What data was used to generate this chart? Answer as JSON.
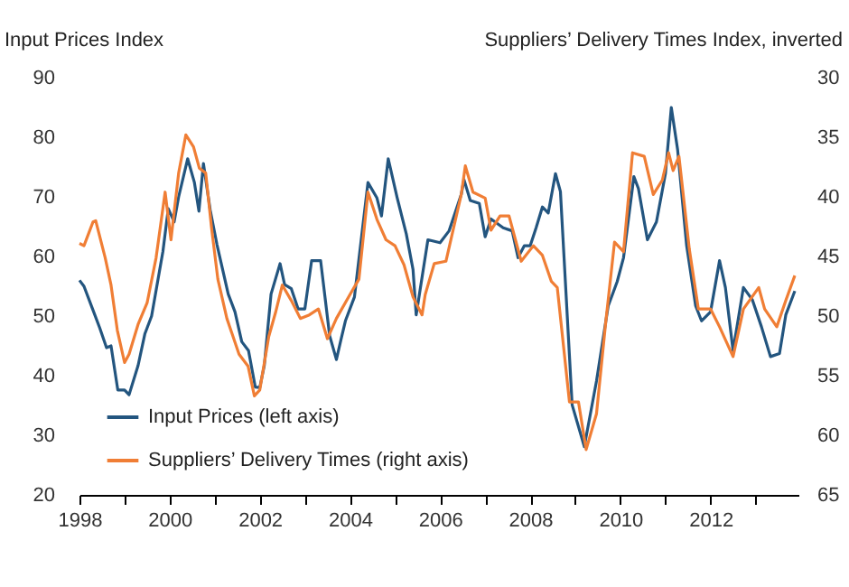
{
  "chart_data": {
    "type": "line",
    "ylabel": "Input Prices Index",
    "y2label": "Suppliers’ Delivery Times Index, inverted",
    "xlim": [
      1998,
      2013.95
    ],
    "xticks": [
      1998,
      {
        "value": 1999,
        "label": null
      },
      2000,
      {
        "value": 2001,
        "label": null
      },
      2002,
      {
        "value": 2003,
        "label": null
      },
      2004,
      {
        "value": 2005,
        "label": null
      },
      2006,
      {
        "value": 2007,
        "label": null
      },
      2008,
      {
        "value": 2009,
        "label": null
      },
      2010,
      {
        "value": 2011,
        "label": null
      },
      2012,
      {
        "value": 2013,
        "label": null
      }
    ],
    "ylim": [
      20,
      90
    ],
    "yticks": [
      20,
      30,
      40,
      50,
      60,
      70,
      80,
      90
    ],
    "y2lim": [
      65,
      30
    ],
    "y2ticks": [
      30,
      35,
      40,
      45,
      50,
      55,
      60,
      65
    ],
    "grid": false,
    "legend": "bottom left",
    "marker": "none",
    "line_style": "solid",
    "series": [
      {
        "name": "Input Prices (left axis)",
        "color": "#23557f",
        "x": [
          1998.0,
          1998.1,
          1998.3,
          1998.45,
          1998.6,
          1998.7,
          1998.85,
          1999.0,
          1999.1,
          1999.3,
          1999.45,
          1999.6,
          1999.85,
          1999.97,
          2000.1,
          2000.2,
          2000.4,
          2000.55,
          2000.65,
          2000.75,
          2000.9,
          2001.05,
          2001.3,
          2001.45,
          2001.6,
          2001.75,
          2001.9,
          2002.0,
          2002.1,
          2002.25,
          2002.45,
          2002.55,
          2002.7,
          2002.85,
          2003.0,
          2003.15,
          2003.35,
          2003.55,
          2003.7,
          2003.8,
          2003.9,
          2004.1,
          2004.4,
          2004.6,
          2004.7,
          2004.85,
          2005.05,
          2005.25,
          2005.4,
          2005.47,
          2005.73,
          2006.0,
          2006.2,
          2006.47,
          2006.53,
          2006.67,
          2006.87,
          2007.0,
          2007.13,
          2007.4,
          2007.6,
          2007.73,
          2007.87,
          2008.0,
          2008.13,
          2008.27,
          2008.4,
          2008.56,
          2008.67,
          2008.93,
          2009.2,
          2009.47,
          2009.73,
          2009.93,
          2010.07,
          2010.3,
          2010.4,
          2010.6,
          2010.8,
          2011.0,
          2011.13,
          2011.27,
          2011.47,
          2011.67,
          2011.8,
          2012.0,
          2012.2,
          2012.33,
          2012.5,
          2012.73,
          2012.93,
          2013.13,
          2013.33,
          2013.53,
          2013.67,
          2013.87
        ],
        "values": [
          56,
          55,
          51,
          48,
          44.7,
          45,
          37.6,
          37.6,
          36.8,
          41.7,
          47,
          50,
          60.8,
          68,
          65.8,
          70,
          76.4,
          72.4,
          67.6,
          75.6,
          67.8,
          62,
          53.7,
          50.7,
          45.7,
          44.2,
          38.1,
          38,
          41.7,
          53.7,
          58.8,
          55.3,
          54.6,
          51.2,
          51.2,
          59.3,
          59.3,
          46.7,
          42.7,
          46,
          49.2,
          53.2,
          72.4,
          69.8,
          66.8,
          76.4,
          69.8,
          63.8,
          57.8,
          50.2,
          62.8,
          62.3,
          64.3,
          70.4,
          72.9,
          69.4,
          68.9,
          63.3,
          66.3,
          64.8,
          64.3,
          59.8,
          61.8,
          61.8,
          64.8,
          68.3,
          67.3,
          73.9,
          70.9,
          35.1,
          28.1,
          39.1,
          51.7,
          55.8,
          59.8,
          73.4,
          71.4,
          62.8,
          65.8,
          73.9,
          85,
          77.9,
          61.8,
          51.7,
          49.2,
          50.7,
          59.3,
          54.8,
          44.2,
          54.8,
          52.7,
          48.2,
          43.2,
          43.7,
          50.2,
          54.2
        ]
      },
      {
        "name": "Suppliers’ Delivery Times (right axis)",
        "color": "#f07e35",
        "axis": "y2",
        "x": [
          1998.0,
          1998.1,
          1998.3,
          1998.36,
          1998.57,
          1998.7,
          1998.84,
          1999.0,
          1999.1,
          1999.3,
          1999.5,
          1999.7,
          1999.9,
          2000.03,
          2000.2,
          2000.36,
          2000.53,
          2000.66,
          2000.8,
          2000.93,
          2001.07,
          2001.27,
          2001.54,
          2001.74,
          2001.88,
          2002.0,
          2002.2,
          2002.35,
          2002.5,
          2002.7,
          2002.9,
          2003.1,
          2003.3,
          2003.5,
          2003.7,
          2004.0,
          2004.2,
          2004.4,
          2004.6,
          2004.8,
          2005.0,
          2005.2,
          2005.4,
          2005.6,
          2005.67,
          2005.87,
          2006.13,
          2006.47,
          2006.56,
          2006.73,
          2007.0,
          2007.13,
          2007.33,
          2007.53,
          2007.8,
          2008.07,
          2008.27,
          2008.47,
          2008.6,
          2008.87,
          2009.07,
          2009.24,
          2009.47,
          2009.67,
          2009.87,
          2010.07,
          2010.27,
          2010.53,
          2010.73,
          2010.93,
          2011.07,
          2011.17,
          2011.3,
          2011.53,
          2011.73,
          2012.0,
          2012.2,
          2012.5,
          2012.73,
          2013.07,
          2013.2,
          2013.47,
          2013.67,
          2013.87
        ],
        "values": [
          43.9,
          44.1,
          42.1,
          42,
          45.1,
          47.4,
          51.2,
          53.9,
          53.2,
          50.7,
          48.9,
          45.1,
          39.6,
          43.6,
          38,
          34.8,
          35.8,
          37.6,
          38,
          42.6,
          46.9,
          50.2,
          53.2,
          54.2,
          56.7,
          56.2,
          51.7,
          49.7,
          47.4,
          48.7,
          50.2,
          49.9,
          49.4,
          51.9,
          50.2,
          48.2,
          46.9,
          39.6,
          41.9,
          43.6,
          44.1,
          45.7,
          48.4,
          49.9,
          48.2,
          45.6,
          45.4,
          39.8,
          37.4,
          39.6,
          40.1,
          42.8,
          41.6,
          41.6,
          45.4,
          44.1,
          44.9,
          47.1,
          47.6,
          57.2,
          57.2,
          61.2,
          58.2,
          50.7,
          43.8,
          44.6,
          36.3,
          36.6,
          39.8,
          38.6,
          36.3,
          37.8,
          36.6,
          44.4,
          49.4,
          49.4,
          50.9,
          53.4,
          49.4,
          47.6,
          49.4,
          50.9,
          48.7,
          46.6
        ]
      }
    ]
  }
}
